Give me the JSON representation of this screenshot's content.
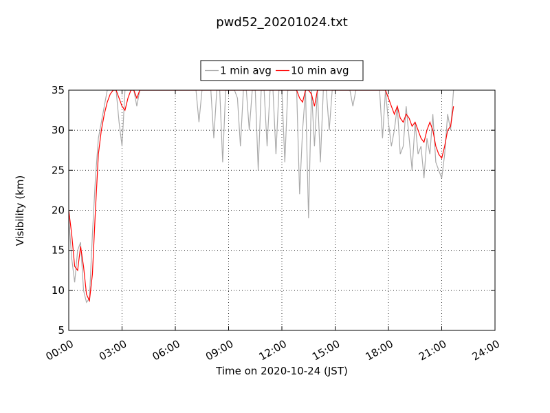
{
  "chart_data": {
    "type": "line",
    "title": "pwd52_20201024.txt",
    "xlabel": "Time on 2020-10-24 (JST)",
    "ylabel": "Visibility (km)",
    "x": [
      0,
      10,
      20,
      30,
      40,
      50,
      60,
      70,
      80,
      90,
      100,
      110,
      120,
      130,
      140,
      150,
      160,
      170,
      180,
      190,
      200,
      210,
      220,
      230,
      240,
      250,
      260,
      270,
      280,
      290,
      300,
      310,
      320,
      330,
      340,
      350,
      360,
      370,
      380,
      390,
      400,
      410,
      420,
      430,
      440,
      450,
      460,
      470,
      480,
      490,
      500,
      510,
      520,
      530,
      540,
      550,
      560,
      570,
      580,
      590,
      600,
      610,
      620,
      630,
      640,
      650,
      660,
      670,
      680,
      690,
      700,
      710,
      720,
      730,
      740,
      750,
      760,
      770,
      780,
      790,
      800,
      810,
      820,
      830,
      840,
      850,
      860,
      870,
      880,
      890,
      900,
      910,
      920,
      930,
      940,
      950,
      960,
      970,
      980,
      990,
      1000,
      1010,
      1020,
      1030,
      1040,
      1050,
      1060,
      1070,
      1080,
      1090,
      1100,
      1110,
      1120,
      1130,
      1140,
      1150,
      1160,
      1170,
      1180,
      1190,
      1200,
      1210,
      1220,
      1230,
      1240,
      1250,
      1260,
      1270,
      1280,
      1290,
      1300
    ],
    "series": [
      {
        "name": "1 min avg",
        "color": "#aaaaaa",
        "values": [
          19,
          14,
          11,
          15,
          16,
          10,
          8.5,
          9,
          17,
          24,
          29,
          31,
          33,
          35,
          35,
          35,
          35,
          31,
          28,
          35,
          35,
          35,
          35,
          33,
          35,
          35,
          35,
          35,
          35,
          35,
          35,
          35,
          35,
          35,
          35,
          35,
          35,
          35,
          35,
          35,
          35,
          35,
          35,
          35,
          31,
          35,
          35,
          35,
          35,
          29,
          35,
          35,
          26,
          35,
          35,
          35,
          35,
          34,
          28,
          35,
          35,
          30,
          35,
          35,
          25,
          35,
          35,
          28,
          35,
          35,
          27,
          35,
          35,
          26,
          35,
          35,
          35,
          35,
          22,
          30,
          35,
          19,
          35,
          28,
          35,
          26,
          35,
          35,
          30,
          35,
          35,
          35,
          35,
          35,
          35,
          35,
          33,
          35,
          35,
          35,
          35,
          35,
          35,
          35,
          35,
          35,
          29,
          35,
          31,
          28,
          30,
          33,
          27,
          28,
          33,
          29,
          25,
          31,
          27,
          28,
          24,
          29,
          27,
          32,
          26,
          25,
          24,
          27,
          32,
          30,
          35
        ]
      },
      {
        "name": "10 min avg",
        "color": "#ff0000",
        "values": [
          20,
          17,
          13,
          12.5,
          15.5,
          13,
          9.5,
          8.7,
          12,
          20,
          27,
          30,
          32,
          33.5,
          34.5,
          35,
          35,
          34,
          33,
          32.5,
          34,
          35,
          35,
          34,
          35,
          35,
          35,
          35,
          35,
          35,
          35,
          35,
          35,
          35,
          35,
          35,
          35,
          35,
          35,
          35,
          35,
          35,
          35,
          35,
          35,
          35,
          35,
          35,
          35,
          35,
          35,
          35,
          35,
          35,
          35,
          35,
          35,
          35,
          35,
          35,
          35,
          35,
          35,
          35,
          35,
          35,
          35,
          35,
          35,
          35,
          35,
          35,
          35,
          35,
          35,
          35,
          35,
          35,
          34,
          33.5,
          35,
          35,
          34.5,
          33,
          35,
          35,
          35,
          35,
          35,
          35,
          35,
          35,
          35,
          35,
          35,
          35,
          35,
          35,
          35,
          35,
          35,
          35,
          35,
          35,
          35,
          35,
          35,
          35,
          34,
          33,
          32,
          33,
          31.5,
          31,
          32,
          31.5,
          30.5,
          31,
          30,
          29,
          28.5,
          30,
          31,
          30,
          28,
          27,
          26.5,
          28,
          30,
          30.5,
          33
        ]
      }
    ],
    "xlim": [
      0,
      1440
    ],
    "xticks": [
      {
        "value": 0,
        "label": "00:00"
      },
      {
        "value": 180,
        "label": "03:00"
      },
      {
        "value": 360,
        "label": "06:00"
      },
      {
        "value": 540,
        "label": "09:00"
      },
      {
        "value": 720,
        "label": "12:00"
      },
      {
        "value": 900,
        "label": "15:00"
      },
      {
        "value": 1080,
        "label": "18:00"
      },
      {
        "value": 1260,
        "label": "21:00"
      },
      {
        "value": 1440,
        "label": "24:00"
      }
    ],
    "ylim": [
      5,
      35
    ],
    "yticks": [
      5,
      10,
      15,
      20,
      25,
      30,
      35
    ],
    "grid": true,
    "legend": "top"
  }
}
